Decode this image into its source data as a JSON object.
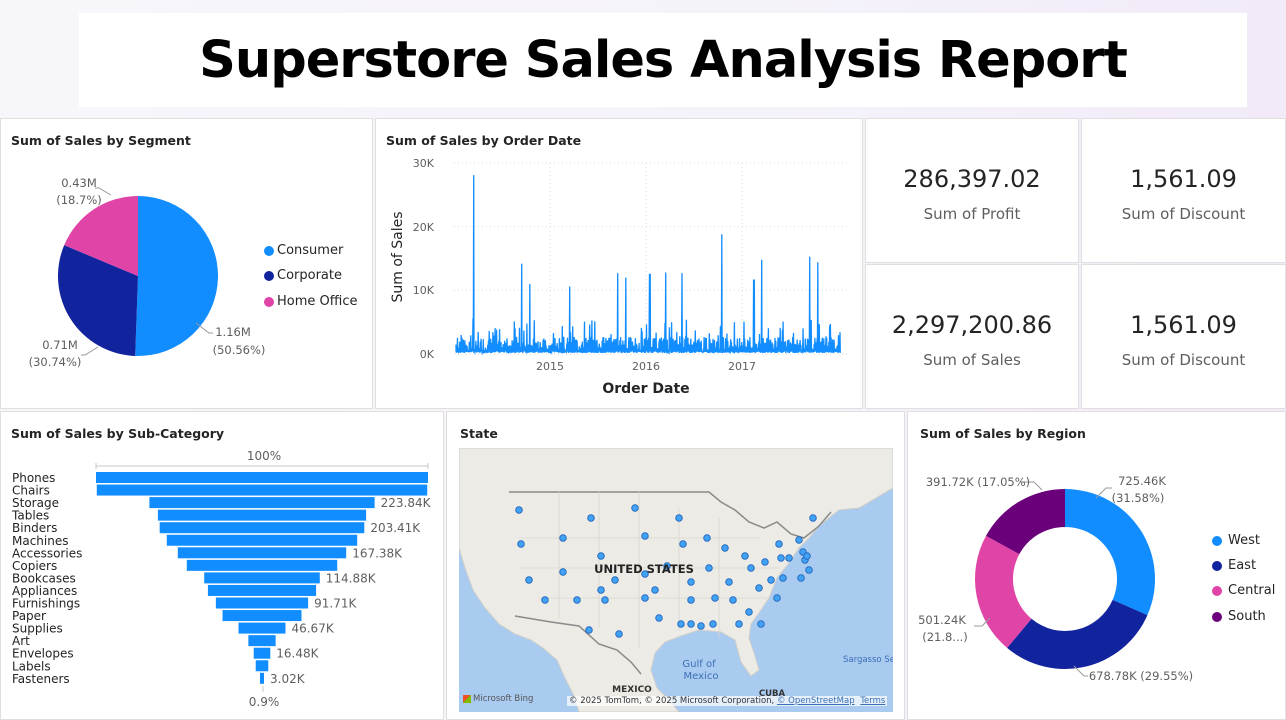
{
  "title": "Superstore Sales Analysis Report",
  "colors": {
    "consumer": "#118dff",
    "corporate": "#12239e",
    "home_office": "#e044a7",
    "west": "#118dff",
    "east": "#12239e",
    "central": "#e044a7",
    "south": "#6b007b"
  },
  "segment": {
    "title": "Sum of Sales by Segment",
    "legend": [
      "Consumer",
      "Corporate",
      "Home Office"
    ],
    "labels": {
      "consumer_val": "1.16M",
      "consumer_pct": "(50.56%)",
      "corporate_val": "0.71M",
      "corporate_pct": "(30.74%)",
      "home_val": "0.43M",
      "home_pct": "(18.7%)"
    }
  },
  "orderdate": {
    "title": "Sum of Sales by Order Date",
    "ylabel": "Sum of Sales",
    "xlabel": "Order Date",
    "yticks": [
      "30K",
      "20K",
      "10K",
      "0K"
    ],
    "xticks": [
      "2015",
      "2016",
      "2017"
    ]
  },
  "kpis": [
    {
      "value": "286,397.02",
      "label": "Sum of Profit"
    },
    {
      "value": "1,561.09",
      "label": "Sum of Discount"
    },
    {
      "value": "2,297,200.86",
      "label": "Sum of Sales"
    },
    {
      "value": "1,561.09",
      "label": "Sum of Discount"
    }
  ],
  "subcat": {
    "title": "Sum of Sales by Sub-Category",
    "top_pct": "100%",
    "bottom_pct": "0.9%"
  },
  "map": {
    "title": "State",
    "country": "UNITED STATES",
    "gulf": "Gulf of\nMexico",
    "gulf1": "Gulf of",
    "gulf2": "Mexico",
    "mexico": "MEXICO",
    "cuba": "CUBA",
    "sargasso": "Sargasso Sea",
    "bing": "Microsoft Bing",
    "attribution": "© 2025 TomTom, © 2025 Microsoft Corporation,",
    "osm": "© OpenStreetMap",
    "terms": "Terms"
  },
  "region": {
    "title": "Sum of Sales by Region",
    "legend": [
      "West",
      "East",
      "Central",
      "South"
    ],
    "labels": {
      "west": "725.46K",
      "west_pct": "(31.58%)",
      "east": "678.78K (29.55%)",
      "central": "501.24K",
      "central_pct": "(21.8...)",
      "south": "391.72K (17.05%)"
    }
  },
  "chart_data": [
    {
      "type": "pie",
      "title": "Sum of Sales by Segment",
      "categories": [
        "Consumer",
        "Corporate",
        "Home Office"
      ],
      "values": [
        1.16,
        0.71,
        0.43
      ],
      "percent": [
        50.56,
        30.74,
        18.7
      ],
      "unit": "M",
      "legend": "right"
    },
    {
      "type": "line",
      "title": "Sum of Sales by Order Date",
      "xlabel": "Order Date",
      "ylabel": "Sum of Sales",
      "ylim": [
        0,
        30000
      ],
      "x_ticks": [
        "2015",
        "2016",
        "2017"
      ],
      "peaks": [
        {
          "x": "2014-03",
          "y": 28100
        },
        {
          "x": "2014-09",
          "y": 14200
        },
        {
          "x": "2014-10",
          "y": 11000
        },
        {
          "x": "2015-03",
          "y": 10600
        },
        {
          "x": "2015-09",
          "y": 12700
        },
        {
          "x": "2015-10",
          "y": 12000
        },
        {
          "x": "2016-01",
          "y": 12600
        },
        {
          "x": "2016-03",
          "y": 12800
        },
        {
          "x": "2016-05",
          "y": 12700
        },
        {
          "x": "2016-10",
          "y": 18800
        },
        {
          "x": "2017-02",
          "y": 11700
        },
        {
          "x": "2017-03",
          "y": 14800
        },
        {
          "x": "2017-09",
          "y": 15300
        },
        {
          "x": "2017-10",
          "y": 14400
        }
      ]
    },
    {
      "type": "bar",
      "title": "Sum of Sales by Sub-Category",
      "orientation": "funnel",
      "categories": [
        "Phones",
        "Chairs",
        "Storage",
        "Tables",
        "Binders",
        "Machines",
        "Accessories",
        "Copiers",
        "Bookcases",
        "Appliances",
        "Furnishings",
        "Paper",
        "Supplies",
        "Art",
        "Envelopes",
        "Labels",
        "Fasteners"
      ],
      "values": [
        330007,
        328449,
        223844,
        206966,
        203413,
        189239,
        167380,
        149528,
        114880,
        107532,
        91705,
        78479,
        46674,
        27119,
        16476,
        12486,
        3024
      ],
      "data_labels": {
        "Storage": "223.84K",
        "Binders": "203.41K",
        "Accessories": "167.38K",
        "Bookcases": "114.88K",
        "Furnishings": "91.71K",
        "Supplies": "46.67K",
        "Envelopes": "16.48K",
        "Fasteners": "3.02K"
      }
    },
    {
      "type": "pie",
      "title": "Sum of Sales by Region",
      "donut": true,
      "categories": [
        "West",
        "East",
        "Central",
        "South"
      ],
      "values": [
        725.46,
        678.78,
        501.24,
        391.72
      ],
      "percent": [
        31.58,
        29.55,
        21.8,
        17.05
      ],
      "unit": "K",
      "legend": "right"
    }
  ]
}
